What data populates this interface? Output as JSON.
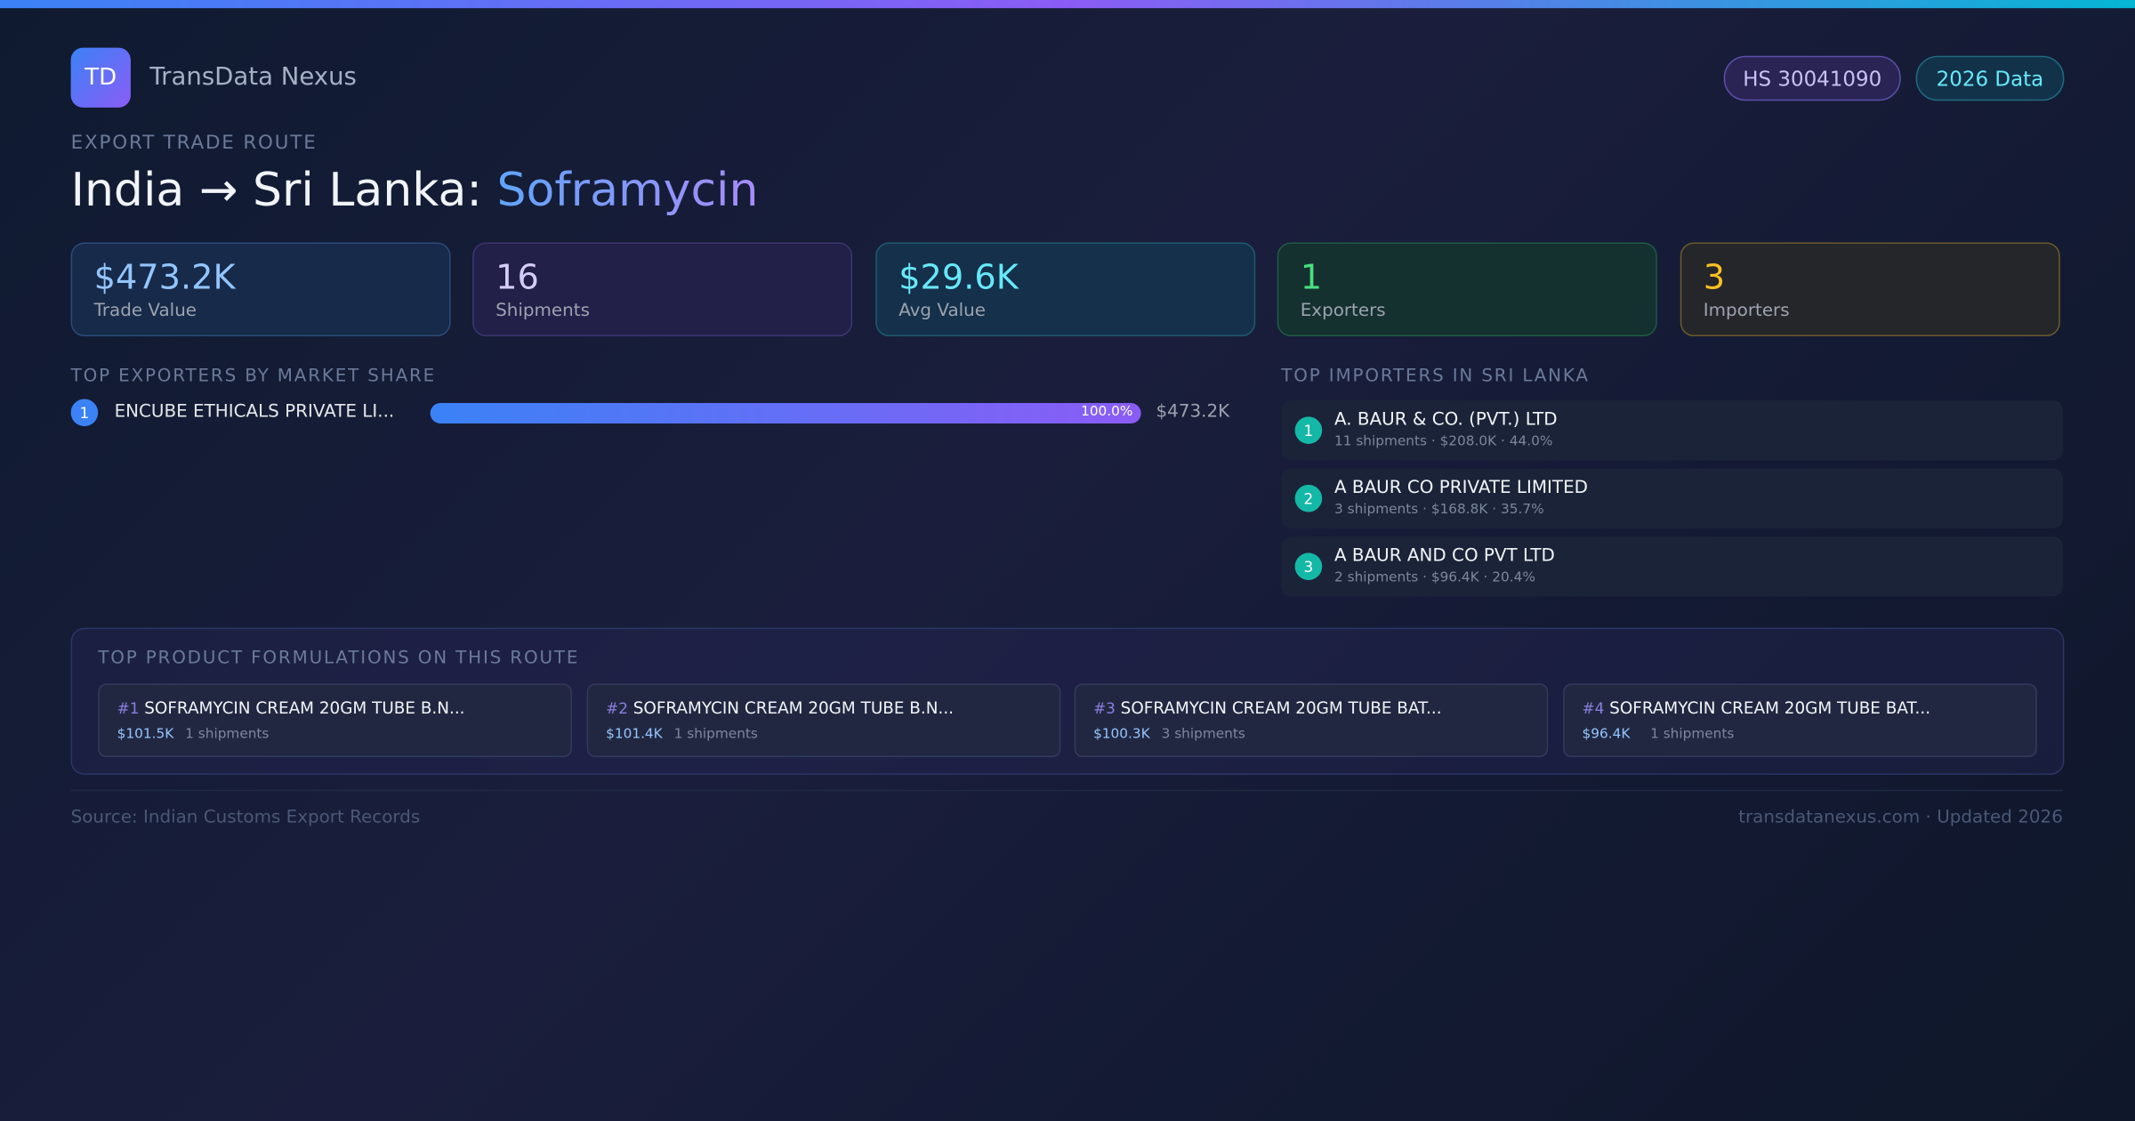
{
  "header": {
    "logo": "TD",
    "brand": "TransData Nexus",
    "badges": [
      "HS 30041090",
      "2026 Data"
    ]
  },
  "route": {
    "eyebrow": "EXPORT TRADE ROUTE",
    "title": "India → Sri Lanka: ",
    "product": "Soframycin"
  },
  "kpis": [
    {
      "value": "$473.2K",
      "label": "Trade Value"
    },
    {
      "value": "16",
      "label": "Shipments"
    },
    {
      "value": "$29.6K",
      "label": "Avg Value"
    },
    {
      "value": "1",
      "label": "Exporters"
    },
    {
      "value": "3",
      "label": "Importers"
    }
  ],
  "exporters": {
    "title": "TOP EXPORTERS BY MARKET SHARE",
    "rows": [
      {
        "rank": "1",
        "name": "ENCUBE ETHICALS PRIVATE LI...",
        "share": {
          "value": 100.0,
          "label": "100.0%"
        },
        "value": "$473.2K"
      }
    ]
  },
  "importers": {
    "title": "TOP IMPORTERS IN SRI LANKA",
    "rows": [
      {
        "rank": "1",
        "name": "A. BAUR & CO. (PVT.) LTD",
        "detail": "11 shipments · $208.0K · 44.0%"
      },
      {
        "rank": "2",
        "name": "A BAUR CO PRIVATE LIMITED",
        "detail": "3 shipments · $168.8K · 35.7%"
      },
      {
        "rank": "3",
        "name": "A BAUR AND CO PVT LTD",
        "detail": "2 shipments · $96.4K · 20.4%"
      }
    ]
  },
  "products": {
    "title": "TOP PRODUCT FORMULATIONS ON THIS ROUTE",
    "cards": [
      {
        "rank": "#1",
        "name": "SOFRAMYCIN CREAM 20GM TUBE B.N...",
        "value": "$101.5K",
        "shipments": "1 shipments"
      },
      {
        "rank": "#2",
        "name": "SOFRAMYCIN CREAM 20GM TUBE B.N...",
        "value": "$101.4K",
        "shipments": "1 shipments"
      },
      {
        "rank": "#3",
        "name": "SOFRAMYCIN CREAM 20GM TUBE BAT...",
        "value": "$100.3K",
        "shipments": "3 shipments"
      },
      {
        "rank": "#4",
        "name": "SOFRAMYCIN CREAM 20GM TUBE BAT...",
        "value": "$96.4K",
        "shipments": "1 shipments"
      }
    ]
  },
  "footer": {
    "source": "Source: Indian Customs Export Records",
    "site": "transdatanexus.com · Updated 2026"
  }
}
